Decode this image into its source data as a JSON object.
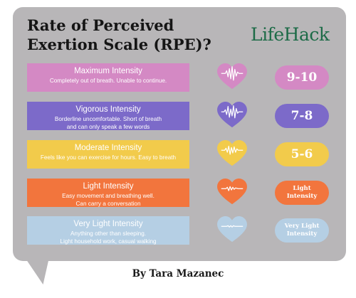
{
  "title": "Rate of Perceived Exertion Scale (RPE)?",
  "logo": "LifeHack",
  "byline": "By Tara Mazanec",
  "levels": [
    {
      "name": "Maximum Intensity",
      "desc1": "Completely out of breath. Unable to continue.",
      "desc2": "",
      "rating": "9-10",
      "color": "#d489c4",
      "icon": "heart-pulse-icon"
    },
    {
      "name": "Vigorous Intensity",
      "desc1": "Borderline uncomfortable. Short of breath",
      "desc2": "and can only speak a few words",
      "rating": "7-8",
      "color": "#7c6ac9",
      "icon": "heart-pulse-icon"
    },
    {
      "name": "Moderate Intensity",
      "desc1": "Feels like you can exercise for hours. Easy to breath",
      "desc2": "",
      "rating": "5-6",
      "color": "#f2cb4b",
      "icon": "heart-pulse-icon"
    },
    {
      "name": "Light Intensity",
      "desc1": "Easy movement and breathing well.",
      "desc2": "Can carry a conversation",
      "rating": "Light Intensity",
      "color": "#f2753d",
      "icon": "heart-pulse-icon"
    },
    {
      "name": "Very Light Intensity",
      "desc1": "Anything other than sleeping.",
      "desc2": "Light household work, casual walking",
      "rating": "Very Light Intensity",
      "color": "#b5cfe4",
      "icon": "heart-pulse-icon"
    }
  ]
}
